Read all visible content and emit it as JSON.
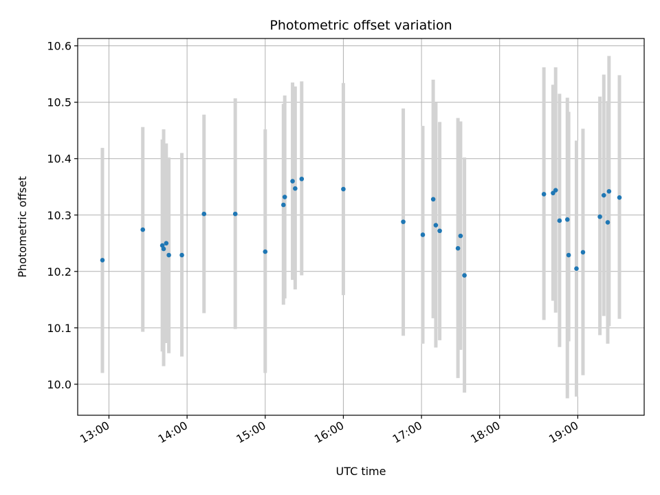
{
  "chart_data": {
    "type": "scatter",
    "title": "Photometric offset variation",
    "xlabel": "UTC time",
    "ylabel": "Photometric offset",
    "x_ticks": [
      "13:00",
      "14:00",
      "15:00",
      "16:00",
      "17:00",
      "18:00",
      "19:00"
    ],
    "y_ticks": [
      "10.0",
      "10.1",
      "10.2",
      "10.3",
      "10.4",
      "10.5",
      "10.6"
    ],
    "xlim": [
      "12:36",
      "19:51"
    ],
    "ylim": [
      9.945,
      10.613
    ],
    "grid": true,
    "colors": {
      "point": "#1f77b4",
      "errorbar": "#d3d3d3"
    },
    "points": [
      {
        "time": "12:55",
        "y": 10.22,
        "err_low": 10.02,
        "err_high": 10.419
      },
      {
        "time": "13:26",
        "y": 10.274,
        "err_low": 10.093,
        "err_high": 10.456
      },
      {
        "time": "13:41",
        "y": 10.246,
        "err_low": 10.058,
        "err_high": 10.434
      },
      {
        "time": "13:42",
        "y": 10.24,
        "err_low": 10.032,
        "err_high": 10.452
      },
      {
        "time": "13:44",
        "y": 10.25,
        "err_low": 10.073,
        "err_high": 10.427
      },
      {
        "time": "13:46",
        "y": 10.229,
        "err_low": 10.055,
        "err_high": 10.402
      },
      {
        "time": "13:56",
        "y": 10.229,
        "err_low": 10.049,
        "err_high": 10.41
      },
      {
        "time": "14:13",
        "y": 10.302,
        "err_low": 10.126,
        "err_high": 10.478
      },
      {
        "time": "14:37",
        "y": 10.302,
        "err_low": 10.098,
        "err_high": 10.507
      },
      {
        "time": "15:00",
        "y": 10.235,
        "err_low": 10.02,
        "err_high": 10.452
      },
      {
        "time": "15:14",
        "y": 10.318,
        "err_low": 10.141,
        "err_high": 10.497
      },
      {
        "time": "15:15",
        "y": 10.332,
        "err_low": 10.152,
        "err_high": 10.512
      },
      {
        "time": "15:21",
        "y": 10.36,
        "err_low": 10.185,
        "err_high": 10.535
      },
      {
        "time": "15:23",
        "y": 10.347,
        "err_low": 10.168,
        "err_high": 10.528
      },
      {
        "time": "15:28",
        "y": 10.364,
        "err_low": 10.193,
        "err_high": 10.537
      },
      {
        "time": "16:00",
        "y": 10.346,
        "err_low": 10.158,
        "err_high": 10.534
      },
      {
        "time": "16:46",
        "y": 10.288,
        "err_low": 10.086,
        "err_high": 10.489
      },
      {
        "time": "17:01",
        "y": 10.265,
        "err_low": 10.072,
        "err_high": 10.458
      },
      {
        "time": "17:09",
        "y": 10.328,
        "err_low": 10.117,
        "err_high": 10.54
      },
      {
        "time": "17:11",
        "y": 10.282,
        "err_low": 10.065,
        "err_high": 10.499
      },
      {
        "time": "17:14",
        "y": 10.272,
        "err_low": 10.078,
        "err_high": 10.465
      },
      {
        "time": "17:28",
        "y": 10.241,
        "err_low": 10.011,
        "err_high": 10.472
      },
      {
        "time": "17:30",
        "y": 10.263,
        "err_low": 10.061,
        "err_high": 10.466
      },
      {
        "time": "17:33",
        "y": 10.193,
        "err_low": 9.985,
        "err_high": 10.402
      },
      {
        "time": "18:34",
        "y": 10.337,
        "err_low": 10.114,
        "err_high": 10.562
      },
      {
        "time": "18:41",
        "y": 10.339,
        "err_low": 10.148,
        "err_high": 10.531
      },
      {
        "time": "18:43",
        "y": 10.344,
        "err_low": 10.127,
        "err_high": 10.562
      },
      {
        "time": "18:46",
        "y": 10.29,
        "err_low": 10.066,
        "err_high": 10.515
      },
      {
        "time": "18:52",
        "y": 10.292,
        "err_low": 9.975,
        "err_high": 10.508
      },
      {
        "time": "18:53",
        "y": 10.229,
        "err_low": 10.076,
        "err_high": 10.483
      },
      {
        "time": "18:59",
        "y": 10.205,
        "err_low": 9.978,
        "err_high": 10.432
      },
      {
        "time": "19:04",
        "y": 10.234,
        "err_low": 10.016,
        "err_high": 10.453
      },
      {
        "time": "19:17",
        "y": 10.297,
        "err_low": 10.087,
        "err_high": 10.51
      },
      {
        "time": "19:20",
        "y": 10.335,
        "err_low": 10.121,
        "err_high": 10.549
      },
      {
        "time": "19:23",
        "y": 10.287,
        "err_low": 10.072,
        "err_high": 10.502
      },
      {
        "time": "19:24",
        "y": 10.342,
        "err_low": 10.103,
        "err_high": 10.582
      },
      {
        "time": "19:32",
        "y": 10.331,
        "err_low": 10.116,
        "err_high": 10.548
      }
    ]
  }
}
